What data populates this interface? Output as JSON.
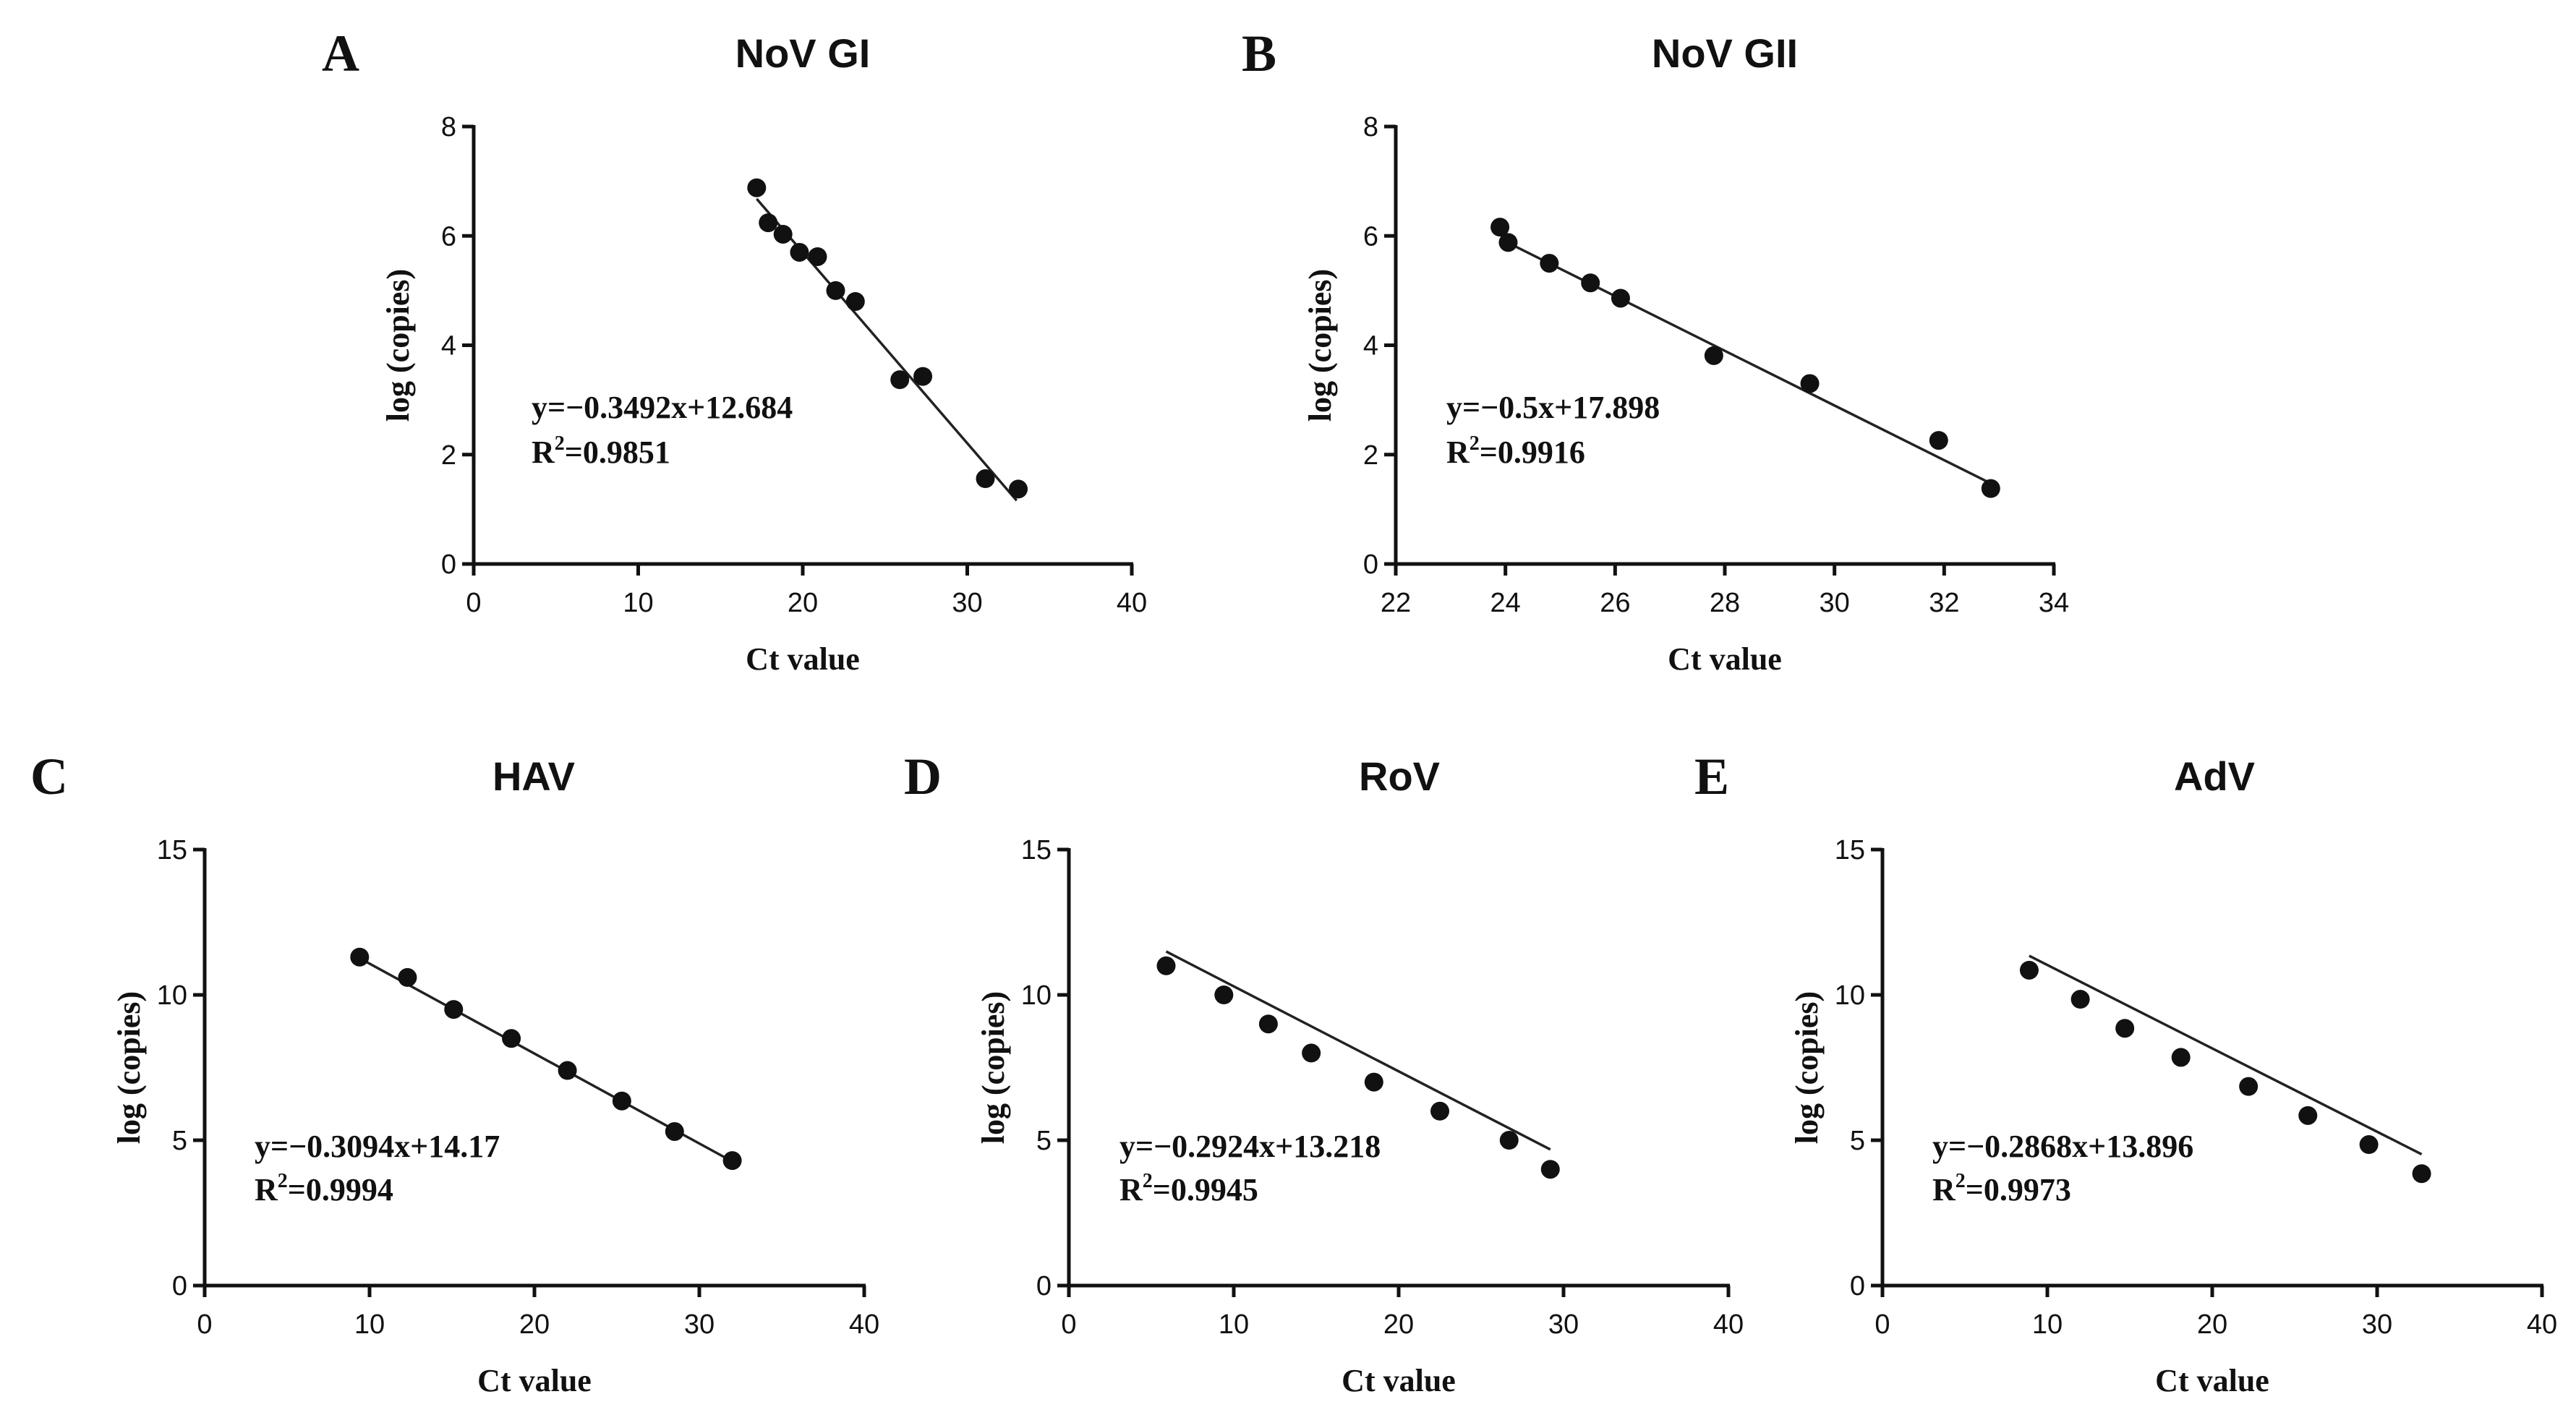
{
  "chart_data": [
    {
      "panel": "A",
      "type": "scatter",
      "title": "NoV GI",
      "xlabel": "Ct value",
      "ylabel": "log (copies)",
      "xlim": [
        0,
        40
      ],
      "ylim": [
        0,
        8
      ],
      "xticks": [
        0,
        10,
        20,
        30,
        40
      ],
      "yticks": [
        0,
        2,
        4,
        6,
        8
      ],
      "x": [
        17.2,
        17.9,
        18.8,
        19.8,
        20.9,
        22.0,
        23.2,
        25.9,
        27.3,
        31.1,
        33.1
      ],
      "y": [
        6.88,
        6.24,
        6.03,
        5.7,
        5.62,
        5.0,
        4.8,
        3.37,
        3.43,
        1.56,
        1.37
      ],
      "fit": {
        "slope": -0.3492,
        "intercept": 12.684,
        "x_range": [
          17.2,
          33.0
        ]
      },
      "equation": "y=−0.3492x+12.684",
      "r2_label": "R",
      "r2_sup": "2",
      "r2_value": "=0.9851"
    },
    {
      "panel": "B",
      "type": "scatter",
      "title": "NoV GII",
      "xlabel": "Ct value",
      "ylabel": "log (copies)",
      "xlim": [
        22,
        34
      ],
      "ylim": [
        0,
        8
      ],
      "xticks": [
        22,
        24,
        26,
        28,
        30,
        32,
        34
      ],
      "yticks": [
        0,
        2,
        4,
        6,
        8
      ],
      "x": [
        23.9,
        24.05,
        24.8,
        25.55,
        26.1,
        27.8,
        29.55,
        31.9,
        32.85
      ],
      "y": [
        6.16,
        5.88,
        5.5,
        5.14,
        4.86,
        3.81,
        3.3,
        2.26,
        1.38
      ],
      "fit": {
        "slope": -0.5,
        "intercept": 17.898,
        "x_range": [
          23.9,
          32.85
        ]
      },
      "equation": "y=−0.5x+17.898",
      "r2_label": "R",
      "r2_sup": "2",
      "r2_value": "=0.9916"
    },
    {
      "panel": "C",
      "type": "scatter",
      "title": "HAV",
      "xlabel": "Ct value",
      "ylabel": "log (copies)",
      "xlim": [
        0,
        40
      ],
      "ylim": [
        0,
        15
      ],
      "xticks": [
        0,
        10,
        20,
        30,
        40
      ],
      "yticks": [
        0,
        5,
        10,
        15
      ],
      "x": [
        9.4,
        12.3,
        15.1,
        18.6,
        22.0,
        25.3,
        28.5,
        32.0
      ],
      "y": [
        11.3,
        10.6,
        9.5,
        8.5,
        7.4,
        6.35,
        5.3,
        4.3
      ],
      "fit": {
        "slope": -0.3094,
        "intercept": 14.17,
        "x_range": [
          9.4,
          32.0
        ]
      },
      "equation": "y=−0.3094x+14.17",
      "r2_label": "R",
      "r2_sup": "2",
      "r2_value": "=0.9994"
    },
    {
      "panel": "D",
      "type": "scatter",
      "title": "RoV",
      "xlabel": "Ct value",
      "ylabel": "log (copies)",
      "xlim": [
        0,
        40
      ],
      "ylim": [
        0,
        15
      ],
      "xticks": [
        0,
        10,
        20,
        30,
        40
      ],
      "yticks": [
        0,
        5,
        10,
        15
      ],
      "x": [
        5.9,
        9.4,
        12.1,
        14.7,
        18.5,
        22.5,
        26.7,
        29.2
      ],
      "y": [
        11.0,
        10.0,
        9.0,
        8.0,
        7.0,
        6.0,
        5.0,
        4.0
      ],
      "fit": {
        "slope": -0.2924,
        "intercept": 13.218,
        "x_range": [
          5.9,
          29.2
        ]
      },
      "equation": "y=−0.2924x+13.218",
      "r2_label": "R",
      "r2_sup": "2",
      "r2_value": "=0.9945"
    },
    {
      "panel": "E",
      "type": "scatter",
      "title": "AdV",
      "xlabel": "Ct value",
      "ylabel": "log (copies)",
      "xlim": [
        0,
        40
      ],
      "ylim": [
        0,
        15
      ],
      "xticks": [
        0,
        10,
        20,
        30,
        40
      ],
      "yticks": [
        0,
        5,
        10,
        15
      ],
      "x": [
        8.9,
        12.0,
        14.7,
        18.1,
        22.2,
        25.8,
        29.5,
        32.7
      ],
      "y": [
        10.85,
        9.85,
        8.85,
        7.85,
        6.85,
        5.85,
        4.85,
        3.85
      ],
      "fit": {
        "slope": -0.2868,
        "intercept": 13.896,
        "x_range": [
          8.9,
          32.7
        ]
      },
      "equation": "y=−0.2868x+13.896",
      "r2_label": "R",
      "r2_sup": "2",
      "r2_value": "=0.9973"
    }
  ]
}
